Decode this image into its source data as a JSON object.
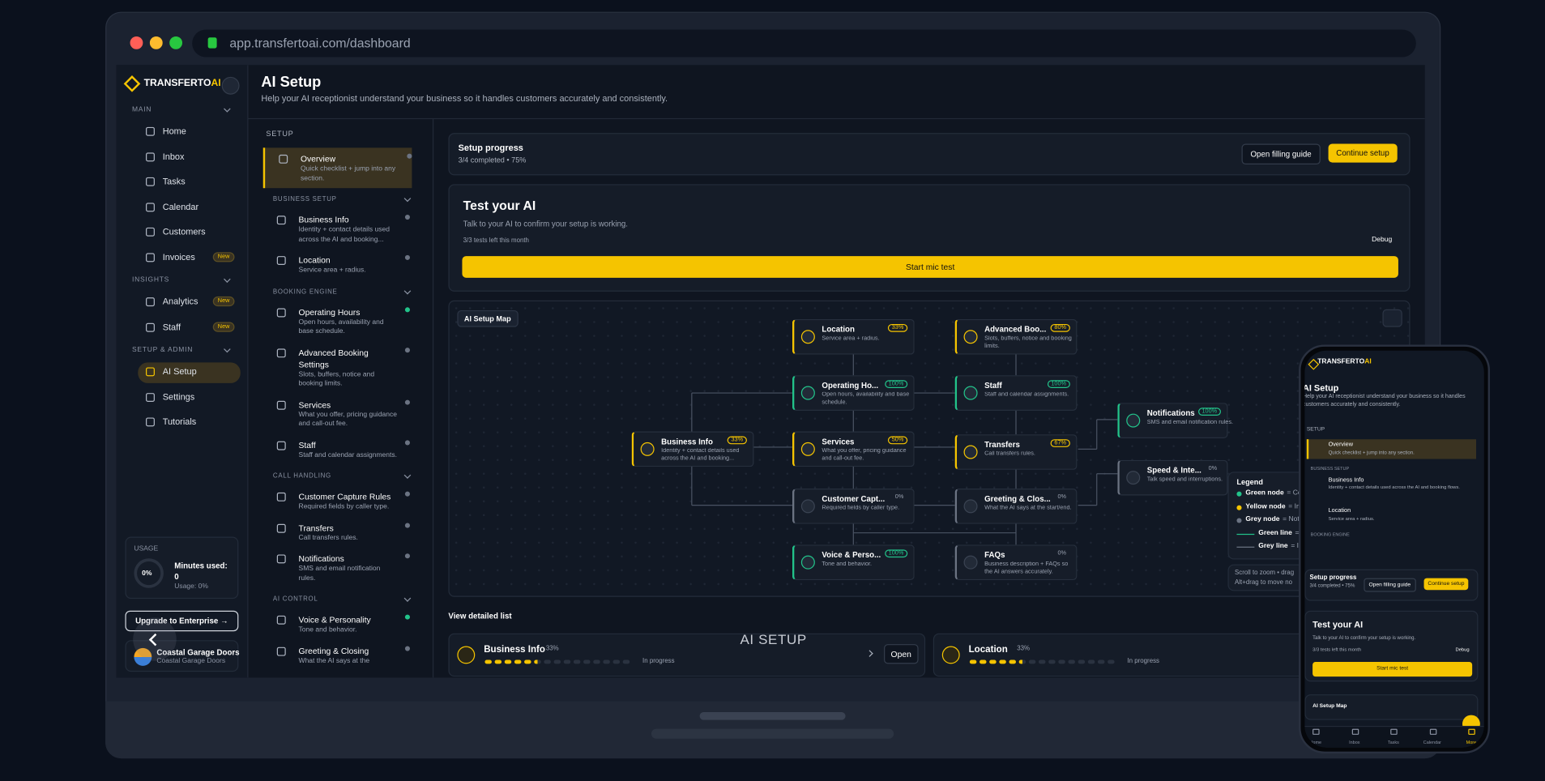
{
  "browser": {
    "url": "app.transfertoai.com/dashboard"
  },
  "brand": {
    "name": "TRANSFERTO",
    "accent": "AI"
  },
  "sidebar": {
    "groups": [
      {
        "label": "MAIN",
        "items": [
          {
            "label": "Home"
          },
          {
            "label": "Inbox"
          },
          {
            "label": "Tasks"
          },
          {
            "label": "Calendar"
          },
          {
            "label": "Customers"
          },
          {
            "label": "Invoices",
            "badge": "New"
          }
        ]
      },
      {
        "label": "INSIGHTS",
        "items": [
          {
            "label": "Analytics",
            "badge": "New"
          },
          {
            "label": "Staff",
            "badge": "New"
          }
        ]
      },
      {
        "label": "SETUP & ADMIN",
        "items": [
          {
            "label": "AI Setup",
            "active": true
          },
          {
            "label": "Settings"
          },
          {
            "label": "Tutorials"
          }
        ]
      }
    ],
    "usage": {
      "label": "USAGE",
      "ring": "0%",
      "minutes_label": "Minutes used:",
      "minutes": "0",
      "usage": "Usage: 0%"
    },
    "upgrade": "Upgrade to Enterprise →",
    "account": {
      "name": "Coastal Garage Doors",
      "sub": "Coastal Garage Doors"
    }
  },
  "overlay": "AI SETUP",
  "header": {
    "title": "AI Setup",
    "subtitle": "Help your AI receptionist understand your business so it handles customers accurately and consistently."
  },
  "setup_nav": {
    "title": "SETUP",
    "overview": {
      "title": "Overview",
      "desc": "Quick checklist + jump into any section."
    },
    "sections": [
      {
        "label": "BUSINESS SETUP",
        "items": [
          {
            "title": "Business Info",
            "desc": "Identity + contact details used across the AI and booking...",
            "status": "grey"
          },
          {
            "title": "Location",
            "desc": "Service area + radius.",
            "status": "grey"
          }
        ]
      },
      {
        "label": "BOOKING ENGINE",
        "items": [
          {
            "title": "Operating Hours",
            "desc": "Open hours, availability and base schedule.",
            "status": "green"
          },
          {
            "title": "Advanced Booking Settings",
            "desc": "Slots, buffers, notice and booking limits.",
            "status": "grey"
          },
          {
            "title": "Services",
            "desc": "What you offer, pricing guidance and call-out fee.",
            "status": "grey"
          },
          {
            "title": "Staff",
            "desc": "Staff and calendar assignments.",
            "status": "grey"
          }
        ]
      },
      {
        "label": "CALL HANDLING",
        "items": [
          {
            "title": "Customer Capture Rules",
            "desc": "Required fields by caller type.",
            "status": "grey"
          },
          {
            "title": "Transfers",
            "desc": "Call transfers rules.",
            "status": "grey"
          },
          {
            "title": "Notifications",
            "desc": "SMS and email notification rules.",
            "status": "grey"
          }
        ]
      },
      {
        "label": "AI CONTROL",
        "items": [
          {
            "title": "Voice & Personality",
            "desc": "Tone and behavior.",
            "status": "green"
          },
          {
            "title": "Greeting & Closing",
            "desc": "What the AI says at the",
            "status": "grey"
          }
        ]
      }
    ]
  },
  "progress": {
    "title": "Setup progress",
    "summary": "3/4 completed • 75%",
    "guide": "Open filling guide",
    "continue": "Continue setup"
  },
  "test": {
    "title": "Test your AI",
    "desc": "Talk to your AI to confirm your setup is working.",
    "tests": "3/3 tests left this month",
    "debug": "Debug",
    "button": "Start mic test"
  },
  "map": {
    "title": "AI Setup Map",
    "nodes": [
      {
        "title": "Location",
        "pct": "33%",
        "desc": "Service area + radius.",
        "status": "yellow"
      },
      {
        "title": "Advanced Boo...",
        "pct": "80%",
        "desc": "Slots, buffers, notice and booking limits.",
        "status": "yellow"
      },
      {
        "title": "Operating Ho...",
        "pct": "100%",
        "desc": "Open hours, availability and base schedule.",
        "status": "green"
      },
      {
        "title": "Staff",
        "pct": "100%",
        "desc": "Staff and calendar assignments.",
        "status": "green"
      },
      {
        "title": "Notifications",
        "pct": "100%",
        "desc": "SMS and email notification rules.",
        "status": "green"
      },
      {
        "title": "Business Info",
        "pct": "33%",
        "desc": "Identity + contact details used across the AI and booking...",
        "status": "yellow"
      },
      {
        "title": "Services",
        "pct": "50%",
        "desc": "What you offer, pricing guidance and call-out fee.",
        "status": "yellow"
      },
      {
        "title": "Transfers",
        "pct": "67%",
        "desc": "Call transfers rules.",
        "status": "yellow"
      },
      {
        "title": "Speed & Inte...",
        "pct": "0%",
        "desc": "Talk speed and interruptions.",
        "status": "grey"
      },
      {
        "title": "Customer Capt...",
        "pct": "0%",
        "desc": "Required fields by caller type.",
        "status": "grey"
      },
      {
        "title": "Greeting & Clos...",
        "pct": "0%",
        "desc": "What the AI says at the start/end.",
        "status": "grey"
      },
      {
        "title": "Voice & Perso...",
        "pct": "100%",
        "desc": "Tone and behavior.",
        "status": "green"
      },
      {
        "title": "FAQs",
        "pct": "0%",
        "desc": "Business description + FAQs so the AI answers accurately.",
        "status": "grey"
      }
    ],
    "legend": {
      "title": "Legend",
      "items": [
        {
          "label": "Green node",
          "text": "= Co",
          "kind": "green-dot"
        },
        {
          "label": "Yellow node",
          "text": "= In",
          "kind": "yellow-dot"
        },
        {
          "label": "Grey node",
          "text": "= Not",
          "kind": "grey-dot"
        },
        {
          "label": "Green line",
          "text": "= I",
          "kind": "green-line"
        },
        {
          "label": "Grey line",
          "text": "= In",
          "kind": "grey-line"
        }
      ]
    },
    "hints": [
      "Scroll to zoom • drag",
      "Alt+drag to move no"
    ]
  },
  "list": {
    "title": "View detailed list",
    "cards": [
      {
        "title": "Business Info",
        "pct": "33%",
        "state": "In progress",
        "open": "Open"
      },
      {
        "title": "Location",
        "pct": "33%",
        "state": "In progress"
      }
    ]
  },
  "phone": {
    "business_info_desc": "Identity + contact details used across the AI and booking flows.",
    "tabs": [
      "Home",
      "Inbox",
      "Tasks",
      "Calendar",
      "More"
    ]
  }
}
